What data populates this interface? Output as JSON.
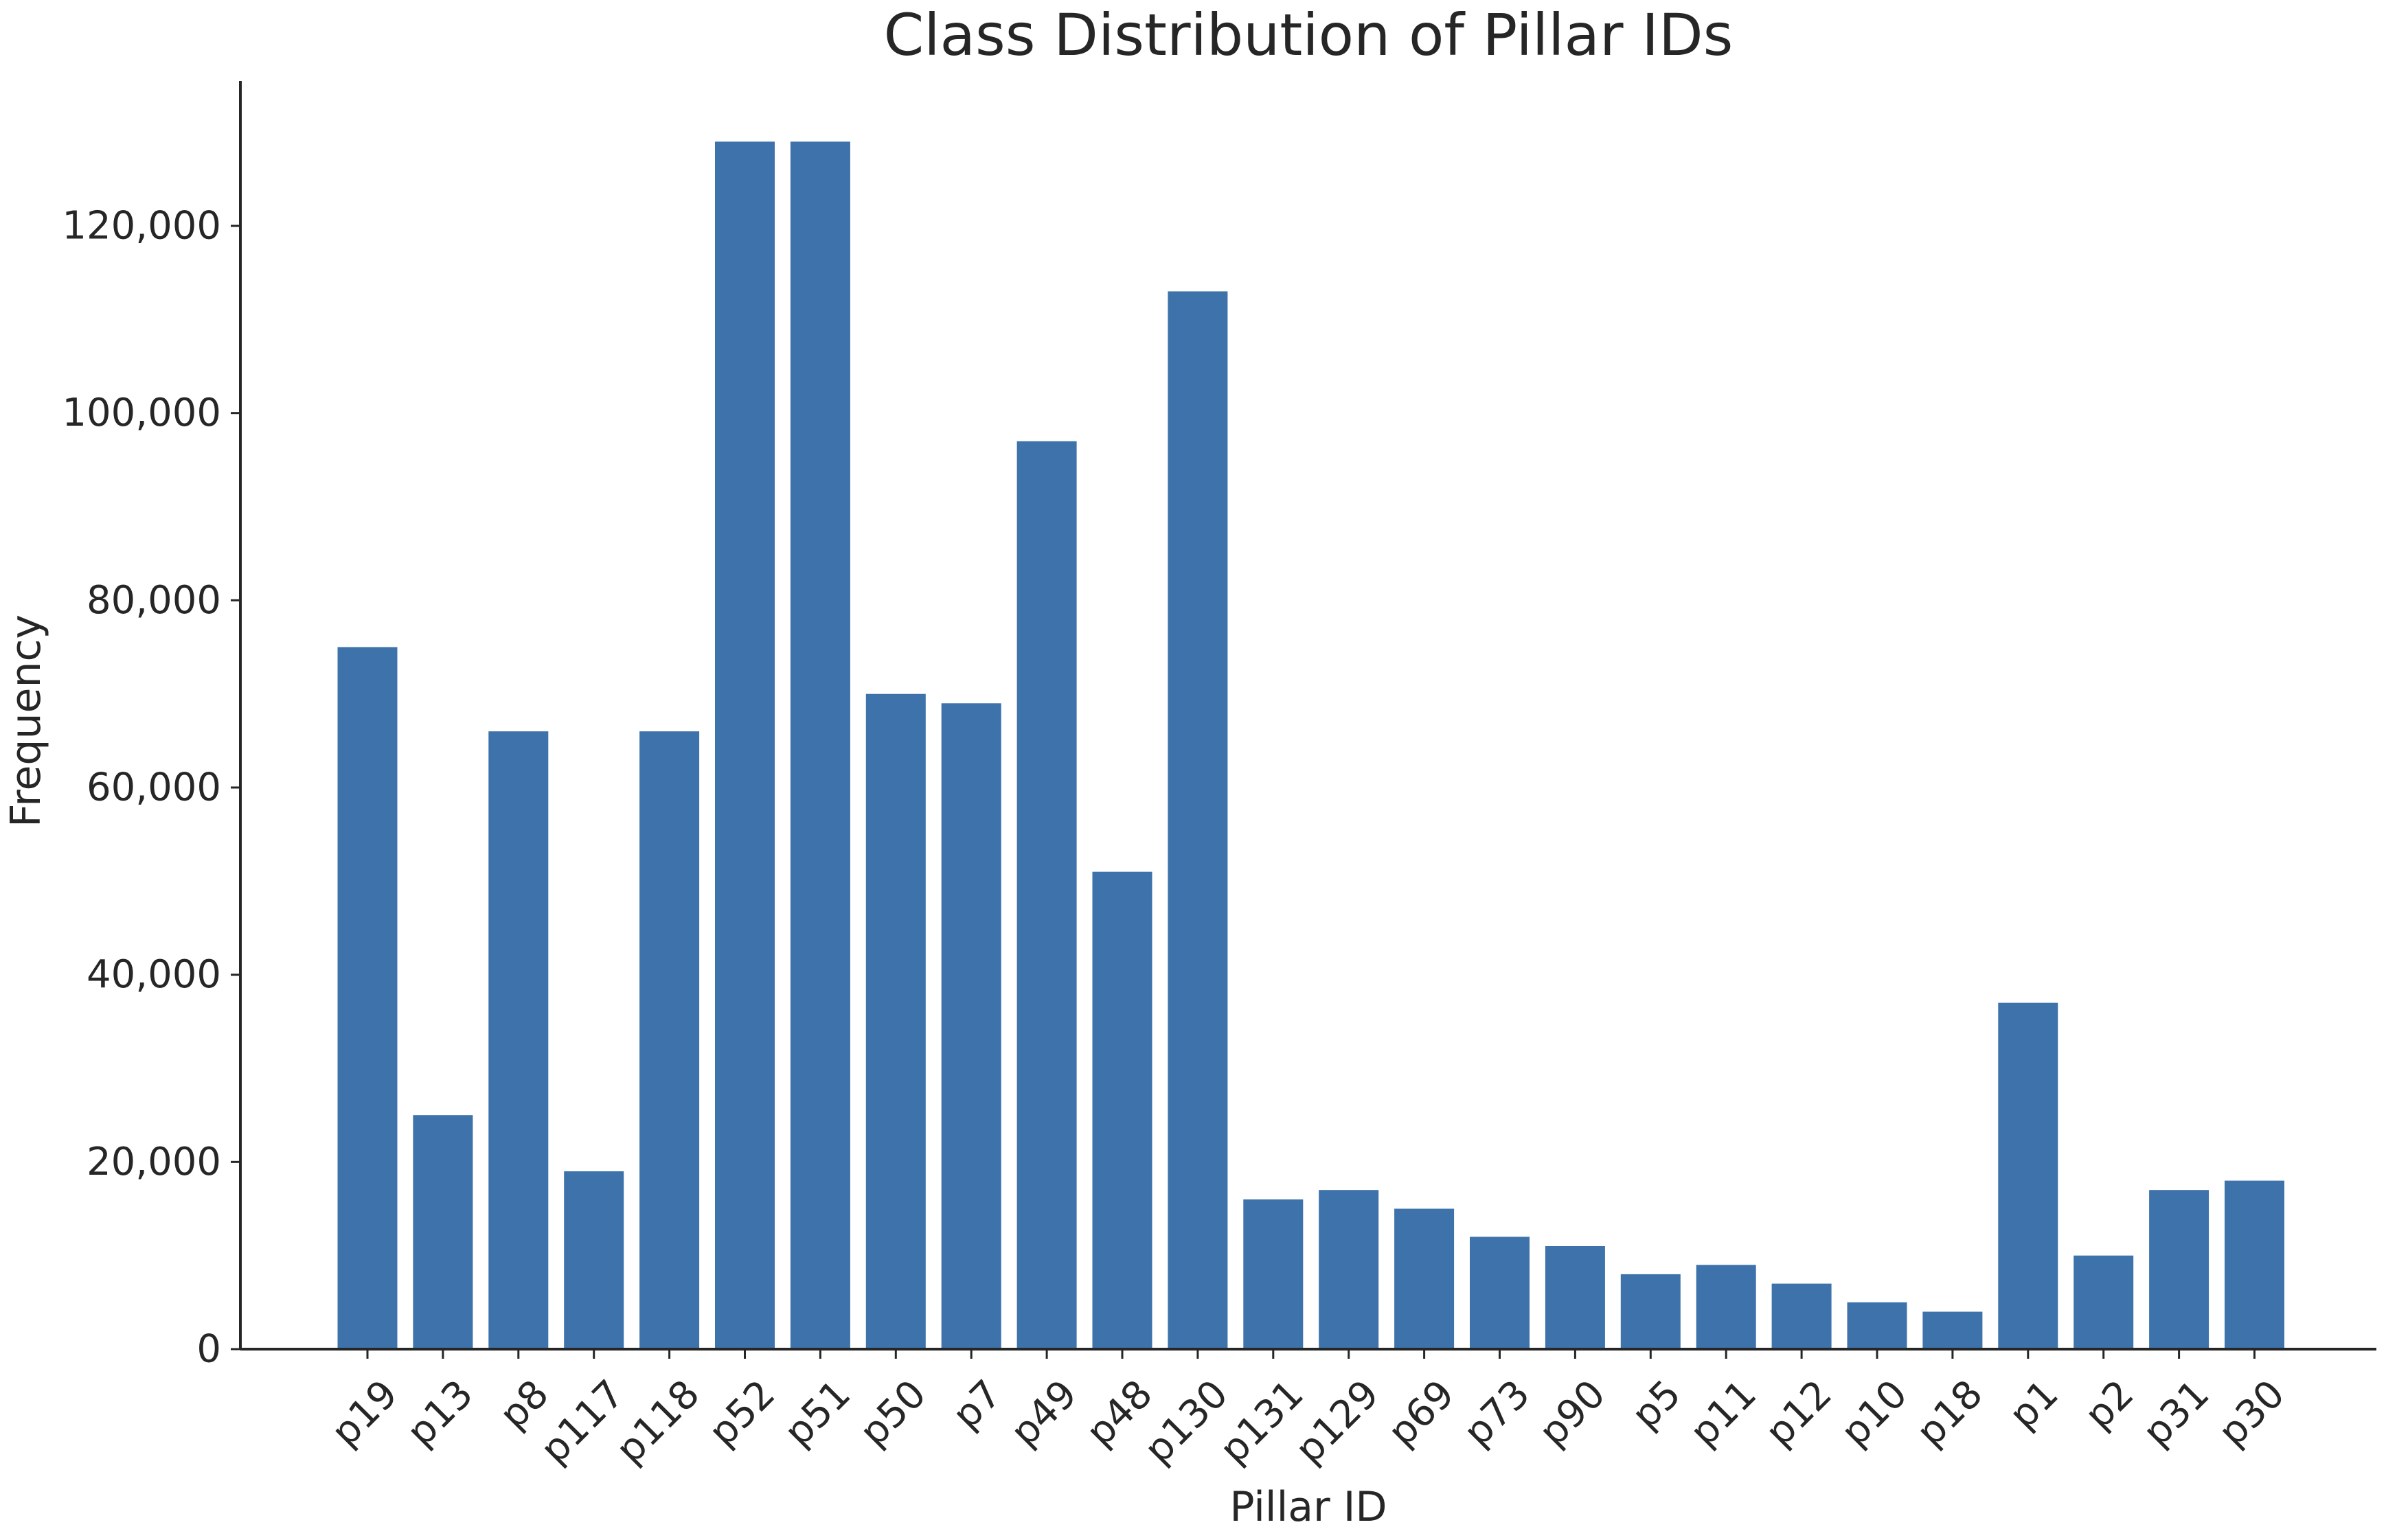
{
  "chart_data": {
    "type": "bar",
    "title": "Class Distribution of Pillar IDs",
    "xlabel": "Pillar ID",
    "ylabel": "Frequency",
    "categories": [
      "p19",
      "p13",
      "p8",
      "p117",
      "p118",
      "p52",
      "p51",
      "p50",
      "p7",
      "p49",
      "p48",
      "p130",
      "p131",
      "p129",
      "p69",
      "p73",
      "p90",
      "p5",
      "p11",
      "p12",
      "p10",
      "p18",
      "p1",
      "p2",
      "p31",
      "p30"
    ],
    "values": [
      75000,
      25000,
      66000,
      19000,
      66000,
      129000,
      129000,
      70000,
      69000,
      97000,
      51000,
      113000,
      16000,
      17000,
      15000,
      12000,
      11000,
      8000,
      9000,
      7000,
      5000,
      4000,
      37000,
      10000,
      17000,
      18000
    ],
    "ylim": [
      0,
      135000
    ],
    "yticks": [
      0,
      20000,
      40000,
      60000,
      80000,
      100000,
      120000
    ],
    "ytick_labels": [
      "0",
      "20,000",
      "40,000",
      "60,000",
      "80,000",
      "100,000",
      "120,000"
    ],
    "bar_color": "#3d72aa",
    "grid": false,
    "legend": "none",
    "spines": "left-bottom"
  }
}
